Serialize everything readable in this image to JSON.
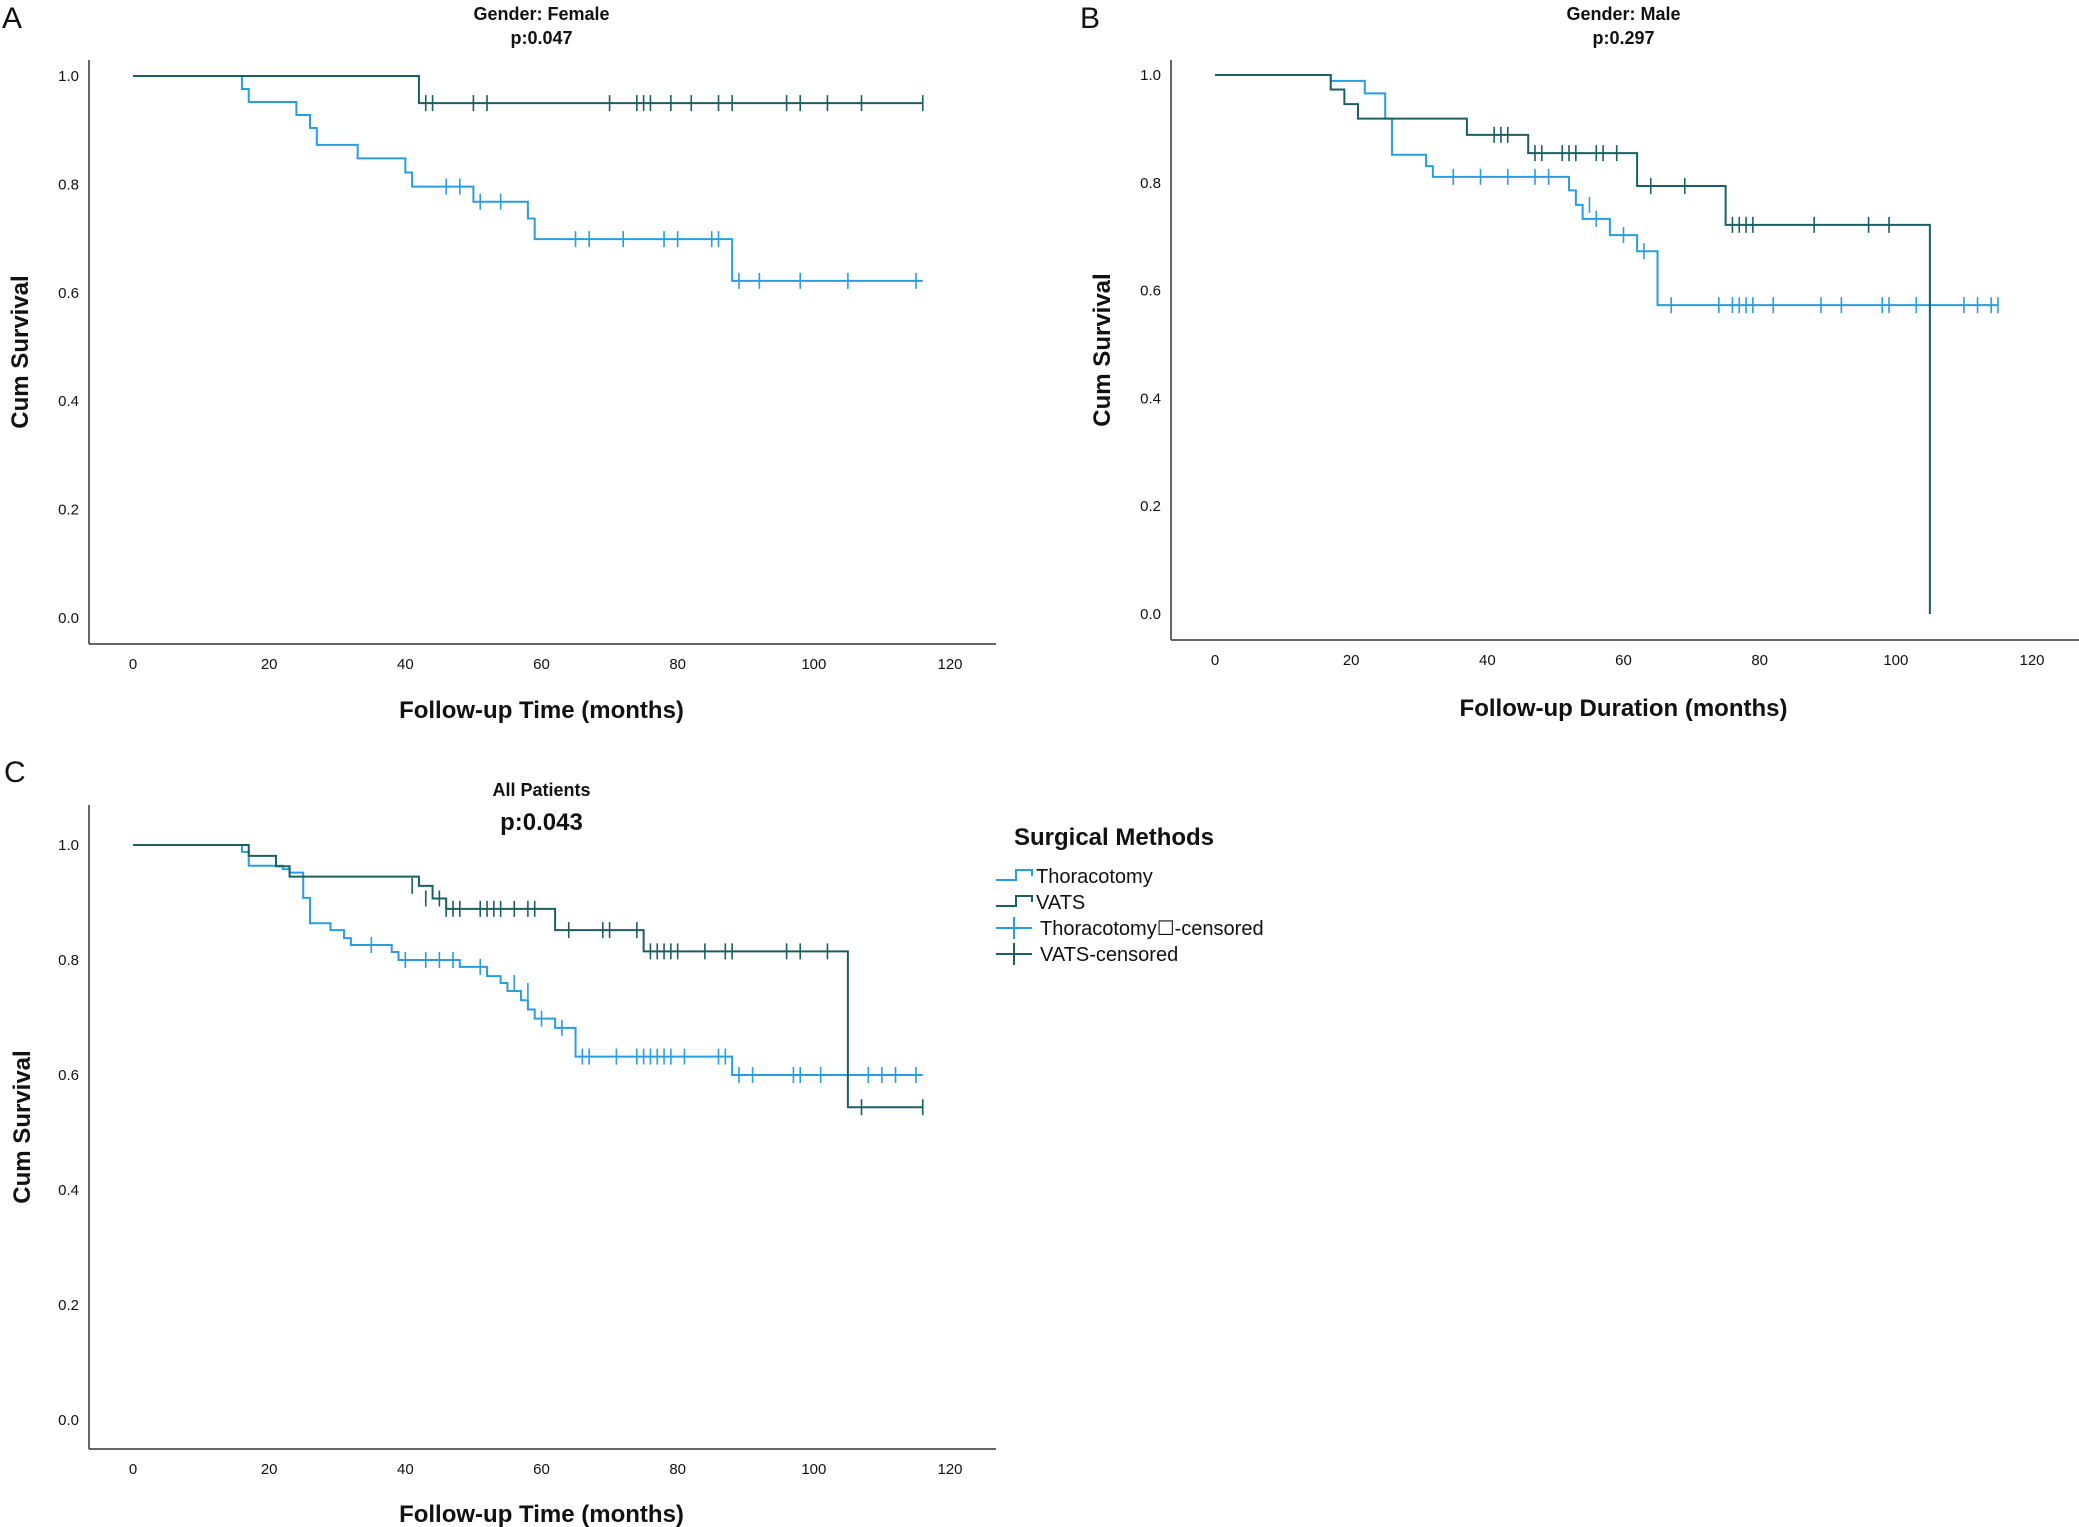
{
  "colors": {
    "thoracotomy": "#2a9ddf",
    "vats": "#1b5e63",
    "axis": "#333333"
  },
  "legend": {
    "title": "Surgical Methods",
    "items": [
      {
        "label": "Thoracotomy",
        "series": "thoracotomy",
        "type": "step"
      },
      {
        "label": "VATS",
        "series": "vats",
        "type": "step"
      },
      {
        "label": "Thoracotomy☐-censored",
        "series": "thoracotomy",
        "type": "censor"
      },
      {
        "label": "VATS-censored",
        "series": "vats",
        "type": "censor"
      }
    ]
  },
  "chart_data": [
    {
      "panel": "A",
      "type": "line",
      "subtype": "kaplan-meier",
      "title": "Gender: Female",
      "subtitle": "p:0.047",
      "xlabel": "Follow-up Time (months)",
      "ylabel": "Cum Survival",
      "xlim": [
        -7,
        127
      ],
      "ylim": [
        -0.05,
        1.07
      ],
      "xticks": [
        "0",
        "20",
        "40",
        "60",
        "80",
        "100",
        "120"
      ],
      "yticks": [
        "0.0",
        "0.2",
        "0.4",
        "0.6",
        "0.8",
        "1.0"
      ],
      "series": [
        {
          "name": "Thoracotomy",
          "key": "thoracotomy",
          "steps": [
            [
              0,
              1.0
            ],
            [
              16,
              0.976
            ],
            [
              17,
              0.952
            ],
            [
              24,
              0.928
            ],
            [
              26,
              0.904
            ],
            [
              27,
              0.873
            ],
            [
              33,
              0.848
            ],
            [
              40,
              0.822
            ],
            [
              41,
              0.796
            ],
            [
              50,
              0.768
            ],
            [
              58,
              0.737
            ],
            [
              59,
              0.699
            ],
            [
              88,
              0.622
            ],
            [
              116,
              0.622
            ]
          ],
          "censored": [
            [
              46,
              0.796
            ],
            [
              48,
              0.796
            ],
            [
              51,
              0.768
            ],
            [
              54,
              0.768
            ],
            [
              65,
              0.699
            ],
            [
              67,
              0.699
            ],
            [
              72,
              0.699
            ],
            [
              78,
              0.699
            ],
            [
              80,
              0.699
            ],
            [
              85,
              0.699
            ],
            [
              86,
              0.699
            ],
            [
              89,
              0.622
            ],
            [
              92,
              0.622
            ],
            [
              98,
              0.622
            ],
            [
              105,
              0.622
            ],
            [
              115,
              0.622
            ]
          ]
        },
        {
          "name": "VATS",
          "key": "vats",
          "steps": [
            [
              0,
              1.0
            ],
            [
              42,
              0.95
            ],
            [
              116,
              0.95
            ]
          ],
          "censored": [
            [
              43,
              0.95
            ],
            [
              44,
              0.95
            ],
            [
              50,
              0.95
            ],
            [
              52,
              0.95
            ],
            [
              70,
              0.95
            ],
            [
              74,
              0.95
            ],
            [
              75,
              0.95
            ],
            [
              76,
              0.95
            ],
            [
              79,
              0.95
            ],
            [
              82,
              0.95
            ],
            [
              86,
              0.95
            ],
            [
              88,
              0.95
            ],
            [
              96,
              0.95
            ],
            [
              98,
              0.95
            ],
            [
              102,
              0.95
            ],
            [
              107,
              0.95
            ],
            [
              116,
              0.95
            ]
          ]
        }
      ]
    },
    {
      "panel": "B",
      "type": "line",
      "subtype": "kaplan-meier",
      "title": "Gender: Male",
      "subtitle": "p:0.297",
      "xlabel": "Follow-up Duration (months)",
      "ylabel": "Cum Survival",
      "xlim": [
        -7,
        127
      ],
      "ylim": [
        -0.05,
        1.07
      ],
      "xticks": [
        "0",
        "20",
        "40",
        "60",
        "80",
        "100",
        "120"
      ],
      "yticks": [
        "0.0",
        "0.2",
        "0.4",
        "0.6",
        "0.8",
        "1.0"
      ],
      "series": [
        {
          "name": "Thoracotomy",
          "key": "thoracotomy",
          "steps": [
            [
              0,
              1.0
            ],
            [
              17,
              0.989
            ],
            [
              22,
              0.966
            ],
            [
              25,
              0.919
            ],
            [
              26,
              0.852
            ],
            [
              31,
              0.831
            ],
            [
              32,
              0.811
            ],
            [
              52,
              0.786
            ],
            [
              53,
              0.759
            ],
            [
              54,
              0.733
            ],
            [
              58,
              0.703
            ],
            [
              62,
              0.673
            ],
            [
              65,
              0.573
            ],
            [
              115,
              0.573
            ]
          ],
          "censored": [
            [
              35,
              0.811
            ],
            [
              39,
              0.811
            ],
            [
              43,
              0.811
            ],
            [
              47,
              0.811
            ],
            [
              49,
              0.811
            ],
            [
              55,
              0.759
            ],
            [
              56,
              0.733
            ],
            [
              60,
              0.703
            ],
            [
              63,
              0.673
            ],
            [
              67,
              0.573
            ],
            [
              74,
              0.573
            ],
            [
              76,
              0.573
            ],
            [
              77,
              0.573
            ],
            [
              78,
              0.573
            ],
            [
              79,
              0.573
            ],
            [
              82,
              0.573
            ],
            [
              89,
              0.573
            ],
            [
              92,
              0.573
            ],
            [
              98,
              0.573
            ],
            [
              99,
              0.573
            ],
            [
              103,
              0.573
            ],
            [
              110,
              0.573
            ],
            [
              112,
              0.573
            ],
            [
              114,
              0.573
            ],
            [
              115,
              0.573
            ]
          ]
        },
        {
          "name": "VATS",
          "key": "vats",
          "steps": [
            [
              0,
              1.0
            ],
            [
              17,
              0.973
            ],
            [
              19,
              0.946
            ],
            [
              21,
              0.919
            ],
            [
              37,
              0.889
            ],
            [
              46,
              0.855
            ],
            [
              62,
              0.794
            ],
            [
              75,
              0.722
            ],
            [
              105,
              0.722
            ],
            [
              105,
              0.0
            ]
          ],
          "censored": [
            [
              41,
              0.889
            ],
            [
              42,
              0.889
            ],
            [
              43,
              0.889
            ],
            [
              47,
              0.855
            ],
            [
              48,
              0.855
            ],
            [
              51,
              0.855
            ],
            [
              52,
              0.855
            ],
            [
              53,
              0.855
            ],
            [
              56,
              0.855
            ],
            [
              57,
              0.855
            ],
            [
              59,
              0.855
            ],
            [
              64,
              0.794
            ],
            [
              69,
              0.794
            ],
            [
              76,
              0.722
            ],
            [
              77,
              0.722
            ],
            [
              78,
              0.722
            ],
            [
              79,
              0.722
            ],
            [
              88,
              0.722
            ],
            [
              96,
              0.722
            ],
            [
              99,
              0.722
            ]
          ]
        }
      ]
    },
    {
      "panel": "C",
      "type": "line",
      "subtype": "kaplan-meier",
      "title": "All Patients",
      "subtitle": "p:0.043",
      "xlabel": "Follow-up Time (months)",
      "ylabel": "Cum Survival",
      "xlim": [
        -7,
        127
      ],
      "ylim": [
        -0.05,
        1.07
      ],
      "xticks": [
        "0",
        "20",
        "40",
        "60",
        "80",
        "100",
        "120"
      ],
      "yticks": [
        "0.0",
        "0.2",
        "0.4",
        "0.6",
        "0.8",
        "1.0"
      ],
      "series": [
        {
          "name": "Thoracotomy",
          "key": "thoracotomy",
          "steps": [
            [
              0,
              1.0
            ],
            [
              16,
              0.988
            ],
            [
              17,
              0.964
            ],
            [
              22,
              0.958
            ],
            [
              23,
              0.952
            ],
            [
              25,
              0.908
            ],
            [
              26,
              0.864
            ],
            [
              29,
              0.852
            ],
            [
              31,
              0.838
            ],
            [
              32,
              0.826
            ],
            [
              38,
              0.814
            ],
            [
              39,
              0.8
            ],
            [
              48,
              0.788
            ],
            [
              52,
              0.772
            ],
            [
              54,
              0.76
            ],
            [
              55,
              0.746
            ],
            [
              57,
              0.73
            ],
            [
              58,
              0.714
            ],
            [
              59,
              0.698
            ],
            [
              62,
              0.682
            ],
            [
              65,
              0.632
            ],
            [
              88,
              0.6
            ],
            [
              116,
              0.6
            ]
          ],
          "censored": [
            [
              35,
              0.826
            ],
            [
              40,
              0.8
            ],
            [
              43,
              0.8
            ],
            [
              45,
              0.8
            ],
            [
              47,
              0.8
            ],
            [
              51,
              0.788
            ],
            [
              56,
              0.76
            ],
            [
              58,
              0.746
            ],
            [
              60,
              0.698
            ],
            [
              63,
              0.682
            ],
            [
              66,
              0.632
            ],
            [
              67,
              0.632
            ],
            [
              71,
              0.632
            ],
            [
              74,
              0.632
            ],
            [
              75,
              0.632
            ],
            [
              76,
              0.632
            ],
            [
              77,
              0.632
            ],
            [
              78,
              0.632
            ],
            [
              79,
              0.632
            ],
            [
              81,
              0.632
            ],
            [
              86,
              0.632
            ],
            [
              87,
              0.632
            ],
            [
              89,
              0.6
            ],
            [
              91,
              0.6
            ],
            [
              97,
              0.6
            ],
            [
              98,
              0.6
            ],
            [
              101,
              0.6
            ],
            [
              108,
              0.6
            ],
            [
              110,
              0.6
            ],
            [
              112,
              0.6
            ],
            [
              115,
              0.6
            ]
          ]
        },
        {
          "name": "VATS",
          "key": "vats",
          "steps": [
            [
              0,
              1.0
            ],
            [
              17,
              0.981
            ],
            [
              21,
              0.963
            ],
            [
              23,
              0.945
            ],
            [
              42,
              0.929
            ],
            [
              44,
              0.907
            ],
            [
              46,
              0.889
            ],
            [
              62,
              0.852
            ],
            [
              75,
              0.815
            ],
            [
              105,
              0.815
            ],
            [
              105,
              0.544
            ],
            [
              116,
              0.544
            ]
          ],
          "censored": [
            [
              41,
              0.929
            ],
            [
              43,
              0.907
            ],
            [
              45,
              0.907
            ],
            [
              46,
              0.889
            ],
            [
              47,
              0.889
            ],
            [
              48,
              0.889
            ],
            [
              51,
              0.889
            ],
            [
              52,
              0.889
            ],
            [
              53,
              0.889
            ],
            [
              54,
              0.889
            ],
            [
              56,
              0.889
            ],
            [
              58,
              0.889
            ],
            [
              59,
              0.889
            ],
            [
              64,
              0.852
            ],
            [
              69,
              0.852
            ],
            [
              70,
              0.852
            ],
            [
              74,
              0.852
            ],
            [
              76,
              0.815
            ],
            [
              77,
              0.815
            ],
            [
              78,
              0.815
            ],
            [
              79,
              0.815
            ],
            [
              80,
              0.815
            ],
            [
              84,
              0.815
            ],
            [
              87,
              0.815
            ],
            [
              88,
              0.815
            ],
            [
              96,
              0.815
            ],
            [
              98,
              0.815
            ],
            [
              102,
              0.815
            ],
            [
              107,
              0.544
            ],
            [
              116,
              0.544
            ]
          ]
        }
      ]
    }
  ]
}
